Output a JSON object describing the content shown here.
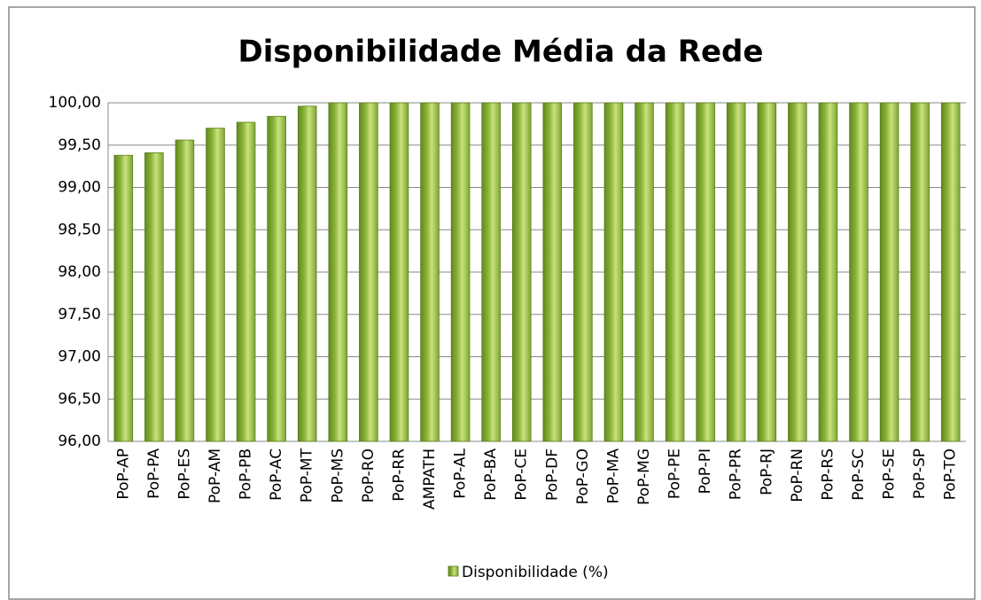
{
  "chart_data": {
    "type": "bar",
    "title": "Disponibilidade Média da Rede",
    "categories": [
      "PoP-AP",
      "PoP-PA",
      "PoP-ES",
      "PoP-AM",
      "PoP-PB",
      "PoP-AC",
      "PoP-MT",
      "PoP-MS",
      "PoP-RO",
      "PoP-RR",
      "AMPATH",
      "PoP-AL",
      "PoP-BA",
      "PoP-CE",
      "PoP-DF",
      "PoP-GO",
      "PoP-MA",
      "PoP-MG",
      "PoP-PE",
      "PoP-PI",
      "PoP-PR",
      "PoP-RJ",
      "PoP-RN",
      "PoP-RS",
      "PoP-SC",
      "PoP-SE",
      "PoP-SP",
      "PoP-TO"
    ],
    "series": [
      {
        "name": "Disponibilidade (%)",
        "color": "#8db43a",
        "values": [
          99.38,
          99.41,
          99.56,
          99.7,
          99.77,
          99.84,
          99.96,
          100,
          100,
          100,
          100,
          100,
          100,
          100,
          100,
          100,
          100,
          100,
          100,
          100,
          100,
          100,
          100,
          100,
          100,
          100,
          100,
          100
        ]
      }
    ],
    "ylim": [
      96,
      100
    ],
    "yticks": [
      {
        "value": 96,
        "label": "96,00"
      },
      {
        "value": 96.5,
        "label": "96,50"
      },
      {
        "value": 97,
        "label": "97,00"
      },
      {
        "value": 97.5,
        "label": "97,50"
      },
      {
        "value": 98,
        "label": "98,00"
      },
      {
        "value": 98.5,
        "label": "98,50"
      },
      {
        "value": 99,
        "label": "99,00"
      },
      {
        "value": 99.5,
        "label": "99,50"
      },
      {
        "value": 100,
        "label": "100,00"
      }
    ],
    "grid": true,
    "legend": "bottom"
  }
}
